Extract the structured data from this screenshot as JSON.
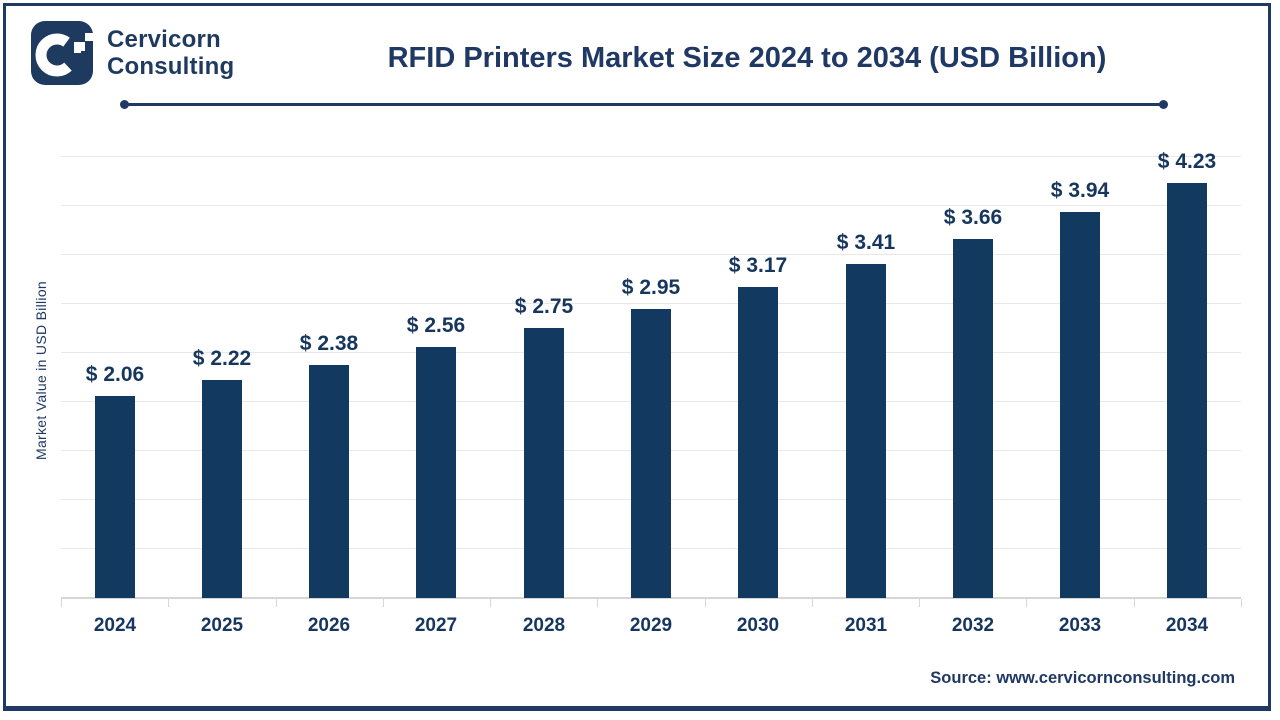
{
  "logo": {
    "icon": "cervicorn-c-logo",
    "line1": "Cervicorn",
    "line2": "Consulting"
  },
  "header": {
    "title": "RFID Printers Market Size 2024 to 2034 (USD Billion)"
  },
  "chart_data": {
    "type": "bar",
    "title": "RFID Printers Market Size 2024 to 2034 (USD Billion)",
    "categories": [
      "2024",
      "2025",
      "2026",
      "2027",
      "2028",
      "2029",
      "2030",
      "2031",
      "2032",
      "2033",
      "2034"
    ],
    "values": [
      2.06,
      2.22,
      2.38,
      2.56,
      2.75,
      2.95,
      3.17,
      3.41,
      3.66,
      3.94,
      4.23
    ],
    "value_labels": [
      "$ 2.06",
      "$ 2.22",
      "$ 2.38",
      "$ 2.56",
      "$ 2.75",
      "$ 2.95",
      "$ 3.17",
      "$ 3.41",
      "$ 3.66",
      "$ 3.94",
      "$ 4.23"
    ],
    "xlabel": "",
    "ylabel": "Market Value in USD Billion",
    "ylim": [
      0,
      4.5
    ],
    "gridline_step": 0.5,
    "grid": "horizontal-only",
    "legend": "none",
    "y_tick_labels_shown": false,
    "bar_color": "#12395f"
  },
  "footer": {
    "source": "Source: www.cervicornconsulting.com"
  },
  "colors": {
    "navy_text": "#1f3864",
    "bar": "#12395f",
    "gridline": "#e8e8e8",
    "axis_line": "#d6d6d6",
    "frame_border": "#1f3864",
    "background": "#ffffff"
  }
}
